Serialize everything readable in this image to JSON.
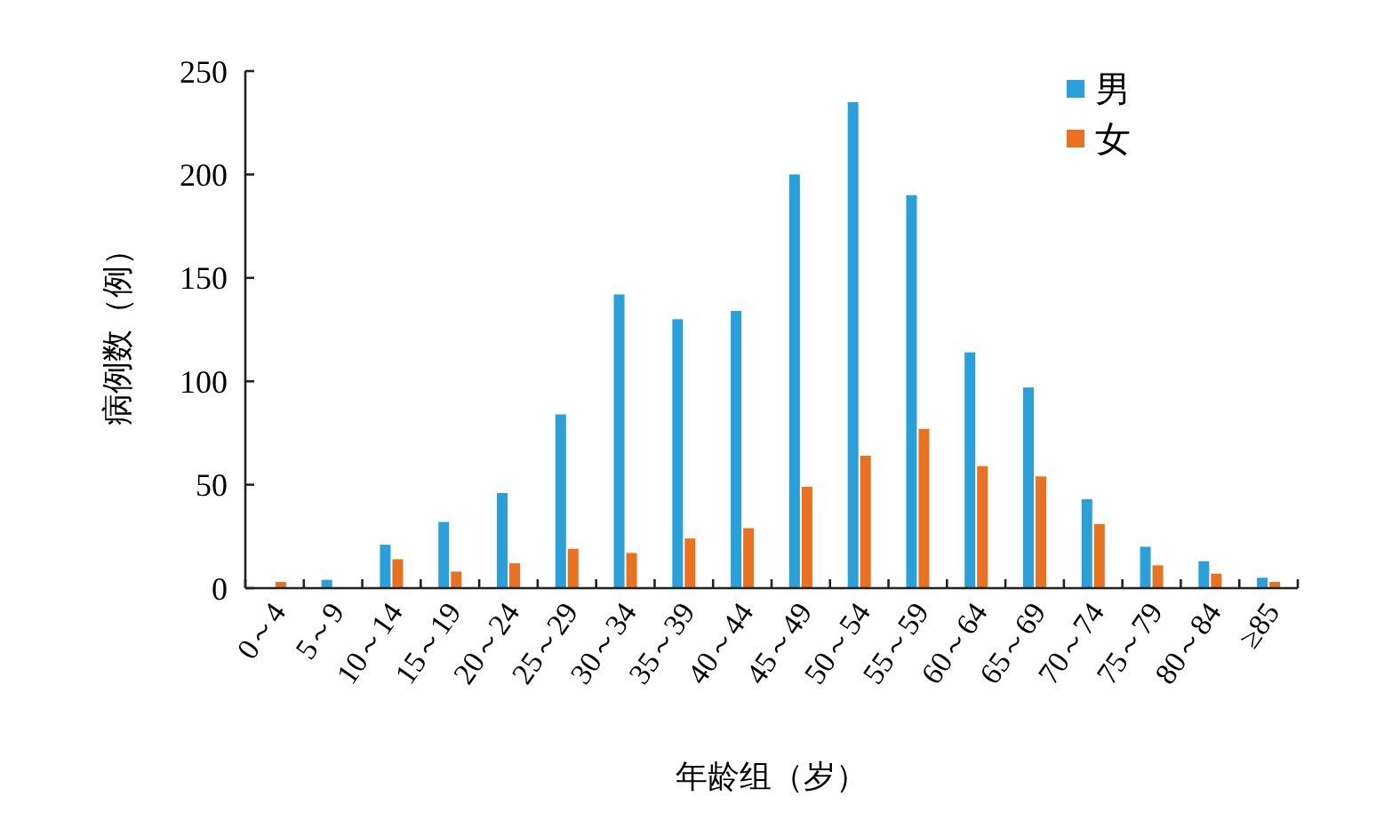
{
  "chart_data": {
    "type": "bar",
    "xlabel": "年龄组（岁）",
    "ylabel": "病例数（例）",
    "categories": [
      "0～4",
      "5～9",
      "10～14",
      "15～19",
      "20～24",
      "25～29",
      "30～34",
      "35～39",
      "40～44",
      "45～49",
      "50～54",
      "55～59",
      "60～64",
      "65～69",
      "70～74",
      "75～79",
      "80～84",
      "≥85"
    ],
    "series": [
      {
        "name": "男",
        "color": "#29a0da",
        "values": [
          0,
          4,
          21,
          32,
          46,
          84,
          142,
          130,
          134,
          200,
          235,
          190,
          114,
          97,
          43,
          20,
          13,
          5
        ]
      },
      {
        "name": "女",
        "color": "#ea7120",
        "values": [
          3,
          null,
          14,
          8,
          12,
          19,
          17,
          24,
          29,
          49,
          64,
          77,
          59,
          54,
          31,
          11,
          7,
          3
        ]
      }
    ],
    "ylim": [
      0,
      250
    ],
    "yticks": [
      0,
      50,
      100,
      150,
      200,
      250
    ],
    "grid": false,
    "legend": "top right"
  }
}
